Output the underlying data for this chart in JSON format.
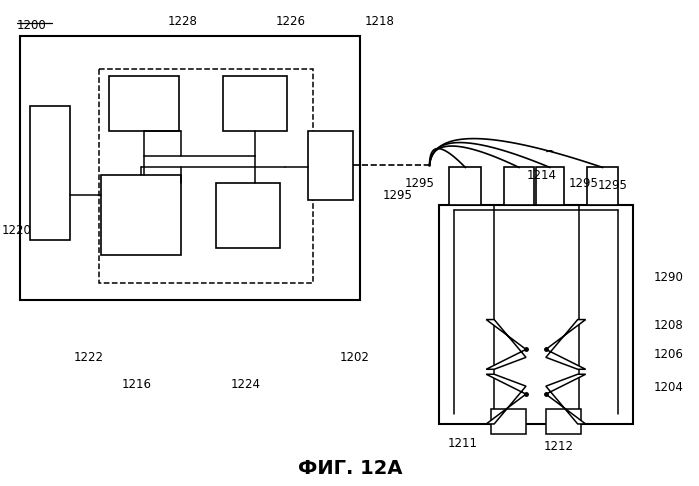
{
  "title": "ФИГ. 12А",
  "bg_color": "#ffffff",
  "line_color": "#000000",
  "lw": 1.2,
  "fs": 8.5
}
